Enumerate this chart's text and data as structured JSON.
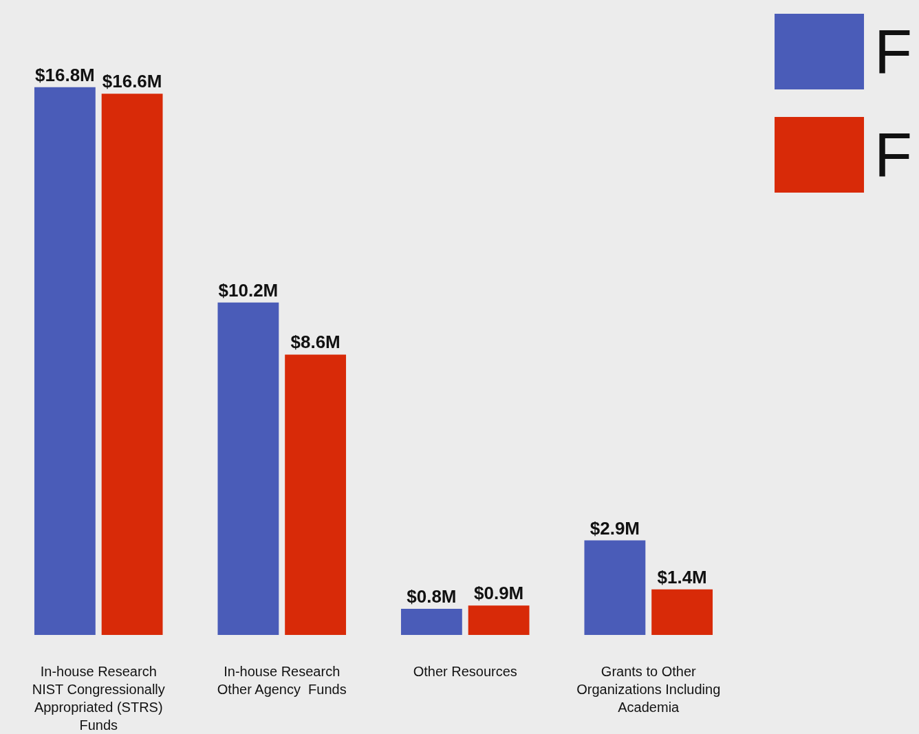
{
  "chart_data": {
    "type": "bar",
    "categories": [
      "In-house Research\nNIST Congressionally\nAppropriated (STRS)\nFunds",
      "In-house Research\nOther Agency  Funds",
      "Other Resources",
      "Grants to Other\nOrganizations Including\nAcademia"
    ],
    "series": [
      {
        "name": "F",
        "color": "#4a5cb8",
        "values": [
          16.8,
          10.2,
          0.8,
          2.9
        ],
        "value_labels": [
          "$16.8M",
          "$10.2M",
          "$0.8M",
          "$2.9M"
        ]
      },
      {
        "name": "F",
        "color": "#d82a08",
        "values": [
          16.6,
          8.6,
          0.9,
          1.4
        ],
        "value_labels": [
          "$16.6M",
          "$8.6M",
          "$0.9M",
          "$1.4M"
        ]
      }
    ],
    "legend": "top right"
  }
}
